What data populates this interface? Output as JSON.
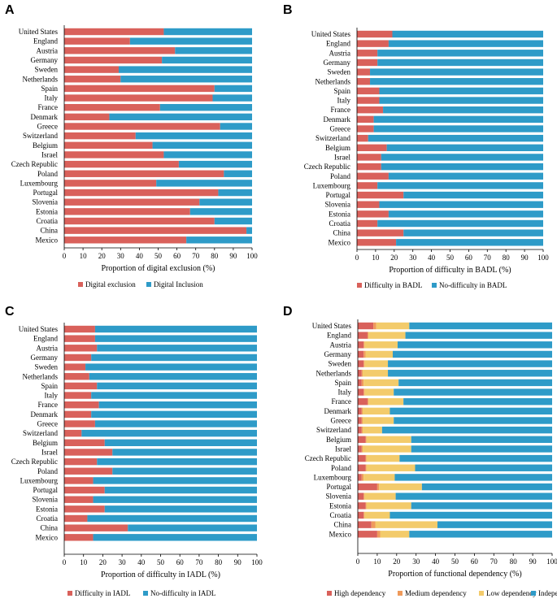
{
  "panels": [
    {
      "letter": "A",
      "chart_data": {
        "type": "bar",
        "orientation": "horizontal",
        "stacked": true,
        "xlabel": "Proportion of digital exclusion (%)",
        "xlim": [
          0,
          100
        ],
        "xticks": [
          0,
          10,
          20,
          30,
          40,
          50,
          60,
          70,
          80,
          90,
          100
        ],
        "legend_position": "bottom",
        "categories": [
          "United States",
          "England",
          "Austria",
          "Germany",
          "Sweden",
          "Netherlands",
          "Spain",
          "Italy",
          "France",
          "Denmark",
          "Greece",
          "Switzerland",
          "Belgium",
          "Israel",
          "Czech Republic",
          "Poland",
          "Luxembourg",
          "Portugal",
          "Slovenia",
          "Estonia",
          "Croatia",
          "China",
          "Mexico"
        ],
        "series": [
          {
            "name": "Digital exclusion",
            "color": "#d9615b",
            "values": [
              53,
              35,
              59,
              52,
              29,
              30,
              80,
              79,
              51,
              24,
              83,
              38,
              47,
              53,
              61,
              85,
              49,
              82,
              72,
              67,
              80,
              97,
              65
            ]
          },
          {
            "name": "Digital Inclusion",
            "color": "#2e9bc8",
            "values": [
              47,
              65,
              41,
              48,
              71,
              70,
              20,
              21,
              49,
              76,
              17,
              62,
              53,
              47,
              39,
              15,
              51,
              18,
              28,
              33,
              20,
              3,
              35
            ]
          }
        ]
      }
    },
    {
      "letter": "B",
      "chart_data": {
        "type": "bar",
        "orientation": "horizontal",
        "stacked": true,
        "xlabel": "Proportion of difficulty in BADL (%)",
        "xlim": [
          0,
          100
        ],
        "xticks": [
          0,
          10,
          20,
          30,
          40,
          50,
          60,
          70,
          80,
          90,
          100
        ],
        "legend_position": "bottom",
        "categories": [
          "United States",
          "England",
          "Austria",
          "Germany",
          "Sweden",
          "Netherlands",
          "Spain",
          "Italy",
          "France",
          "Denmark",
          "Greece",
          "Switzerland",
          "Belgium",
          "Israel",
          "Czech Republic",
          "Poland",
          "Luxembourg",
          "Portugal",
          "Slovenia",
          "Estonia",
          "Croatia",
          "China",
          "Mexico"
        ],
        "series": [
          {
            "name": "Difficulty in BADL",
            "color": "#d9615b",
            "values": [
              19,
              17,
              11,
              11,
              7,
              7,
              12,
              12,
              14,
              9,
              9,
              6,
              16,
              13,
              13,
              17,
              11,
              25,
              12,
              17,
              11,
              25,
              21
            ]
          },
          {
            "name": "No-difficulty in BADL",
            "color": "#2e9bc8",
            "values": [
              81,
              83,
              89,
              89,
              93,
              93,
              88,
              88,
              86,
              91,
              91,
              94,
              84,
              87,
              87,
              83,
              89,
              75,
              88,
              83,
              89,
              75,
              79
            ]
          }
        ]
      }
    },
    {
      "letter": "C",
      "chart_data": {
        "type": "bar",
        "orientation": "horizontal",
        "stacked": true,
        "xlabel": "Proportion of difficulty in IADL (%)",
        "xlim": [
          0,
          100
        ],
        "xticks": [
          0,
          10,
          20,
          30,
          40,
          50,
          60,
          70,
          80,
          90,
          100
        ],
        "legend_position": "bottom",
        "categories": [
          "United States",
          "England",
          "Austria",
          "Germany",
          "Sweden",
          "Netherlands",
          "Spain",
          "Italy",
          "France",
          "Denmark",
          "Greece",
          "Switzerland",
          "Belgium",
          "Israel",
          "Czech Republic",
          "Poland",
          "Luxembourg",
          "Portugal",
          "Slovenia",
          "Estonia",
          "Croatia",
          "China",
          "Mexico"
        ],
        "series": [
          {
            "name": "Difficulty in IADL",
            "color": "#d9615b",
            "values": [
              16,
              16,
              17,
              14,
              11,
              13,
              17,
              14,
              18,
              14,
              16,
              9,
              21,
              25,
              17,
              25,
              15,
              21,
              15,
              21,
              12,
              33,
              15
            ]
          },
          {
            "name": "No-difficulty in IADL",
            "color": "#2e9bc8",
            "values": [
              84,
              84,
              83,
              86,
              89,
              87,
              83,
              86,
              82,
              86,
              84,
              91,
              79,
              75,
              83,
              75,
              85,
              79,
              85,
              79,
              88,
              67,
              85
            ]
          }
        ]
      }
    },
    {
      "letter": "D",
      "chart_data": {
        "type": "bar",
        "orientation": "horizontal",
        "stacked": true,
        "xlabel": "Proportion of functional dependency (%)",
        "xlim": [
          0,
          100
        ],
        "xticks": [
          0,
          10,
          20,
          30,
          40,
          50,
          60,
          70,
          80,
          90,
          100
        ],
        "legend_position": "bottom",
        "categories": [
          "United States",
          "England",
          "Austria",
          "Germany",
          "Sweden",
          "Netherlands",
          "Spain",
          "Italy",
          "France",
          "Denmark",
          "Greece",
          "Switzerland",
          "Belgium",
          "Israel",
          "Czech Republic",
          "Poland",
          "Luxembourg",
          "Portugal",
          "Slovenia",
          "Estonia",
          "Croatia",
          "China",
          "Mexico"
        ],
        "series": [
          {
            "name": "High dependency",
            "color": "#d9615b",
            "values": [
              8,
              5,
              3,
              3,
              3,
              2,
              2,
              3,
              5,
              2,
              2,
              2,
              4,
              2,
              4,
              4,
              2,
              10,
              3,
              4,
              3,
              7,
              10
            ]
          },
          {
            "name": "Medium dependency",
            "color": "#ef9a5b",
            "values": [
              1.5,
              0.5,
              0.5,
              1,
              0.5,
              0.5,
              1,
              0.5,
              0.5,
              0.5,
              0.5,
              0.5,
              0.5,
              0.5,
              0.5,
              0.5,
              1,
              1,
              0.5,
              0.5,
              0.5,
              2,
              1.5
            ]
          },
          {
            "name": "Low dependency",
            "color": "#f3cb6b",
            "values": [
              17,
              19,
              17,
              14,
              12,
              13,
              18,
              15,
              18,
              14,
              16,
              10,
              23,
              25,
              17,
              25,
              16,
              22,
              16,
              23,
              13,
              32,
              15
            ]
          },
          {
            "name": "Independent",
            "color": "#2e9bc8",
            "values": [
              73.5,
              75.5,
              79.5,
              82,
              84.5,
              84.5,
              79,
              81.5,
              76.5,
              83.5,
              81.5,
              87.5,
              72.5,
              72.5,
              78.5,
              70.5,
              81,
              67,
              80.5,
              72.5,
              83.5,
              59,
              73.5
            ]
          }
        ]
      }
    }
  ]
}
